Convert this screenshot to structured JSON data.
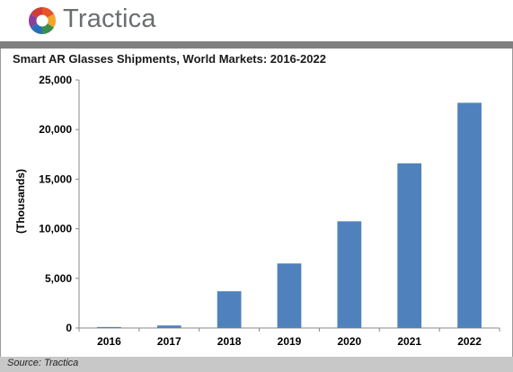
{
  "brand": {
    "name": "Tractica",
    "logo_colors": [
      "#e8542a",
      "#f2a52a",
      "#3b8f4a",
      "#2a6fb6",
      "#8a3f99",
      "#d13b3b"
    ]
  },
  "chart_data": {
    "type": "bar",
    "title": "Smart AR Glasses Shipments, World Markets: 2016-2022",
    "xlabel": "",
    "ylabel": "(Thousands)",
    "categories": [
      "2016",
      "2017",
      "2018",
      "2019",
      "2020",
      "2021",
      "2022"
    ],
    "values": [
      100,
      250,
      3700,
      6500,
      10750,
      16600,
      22700
    ],
    "ylim": [
      0,
      25000
    ],
    "yticks": [
      0,
      5000,
      10000,
      15000,
      20000,
      25000
    ],
    "ytick_labels": [
      "0",
      "5,000",
      "10,000",
      "15,000",
      "20,000",
      "25,000"
    ],
    "bar_color": "#4f81bd",
    "grid": false,
    "legend": "none"
  },
  "footer": {
    "source": "Source: Tractica"
  }
}
